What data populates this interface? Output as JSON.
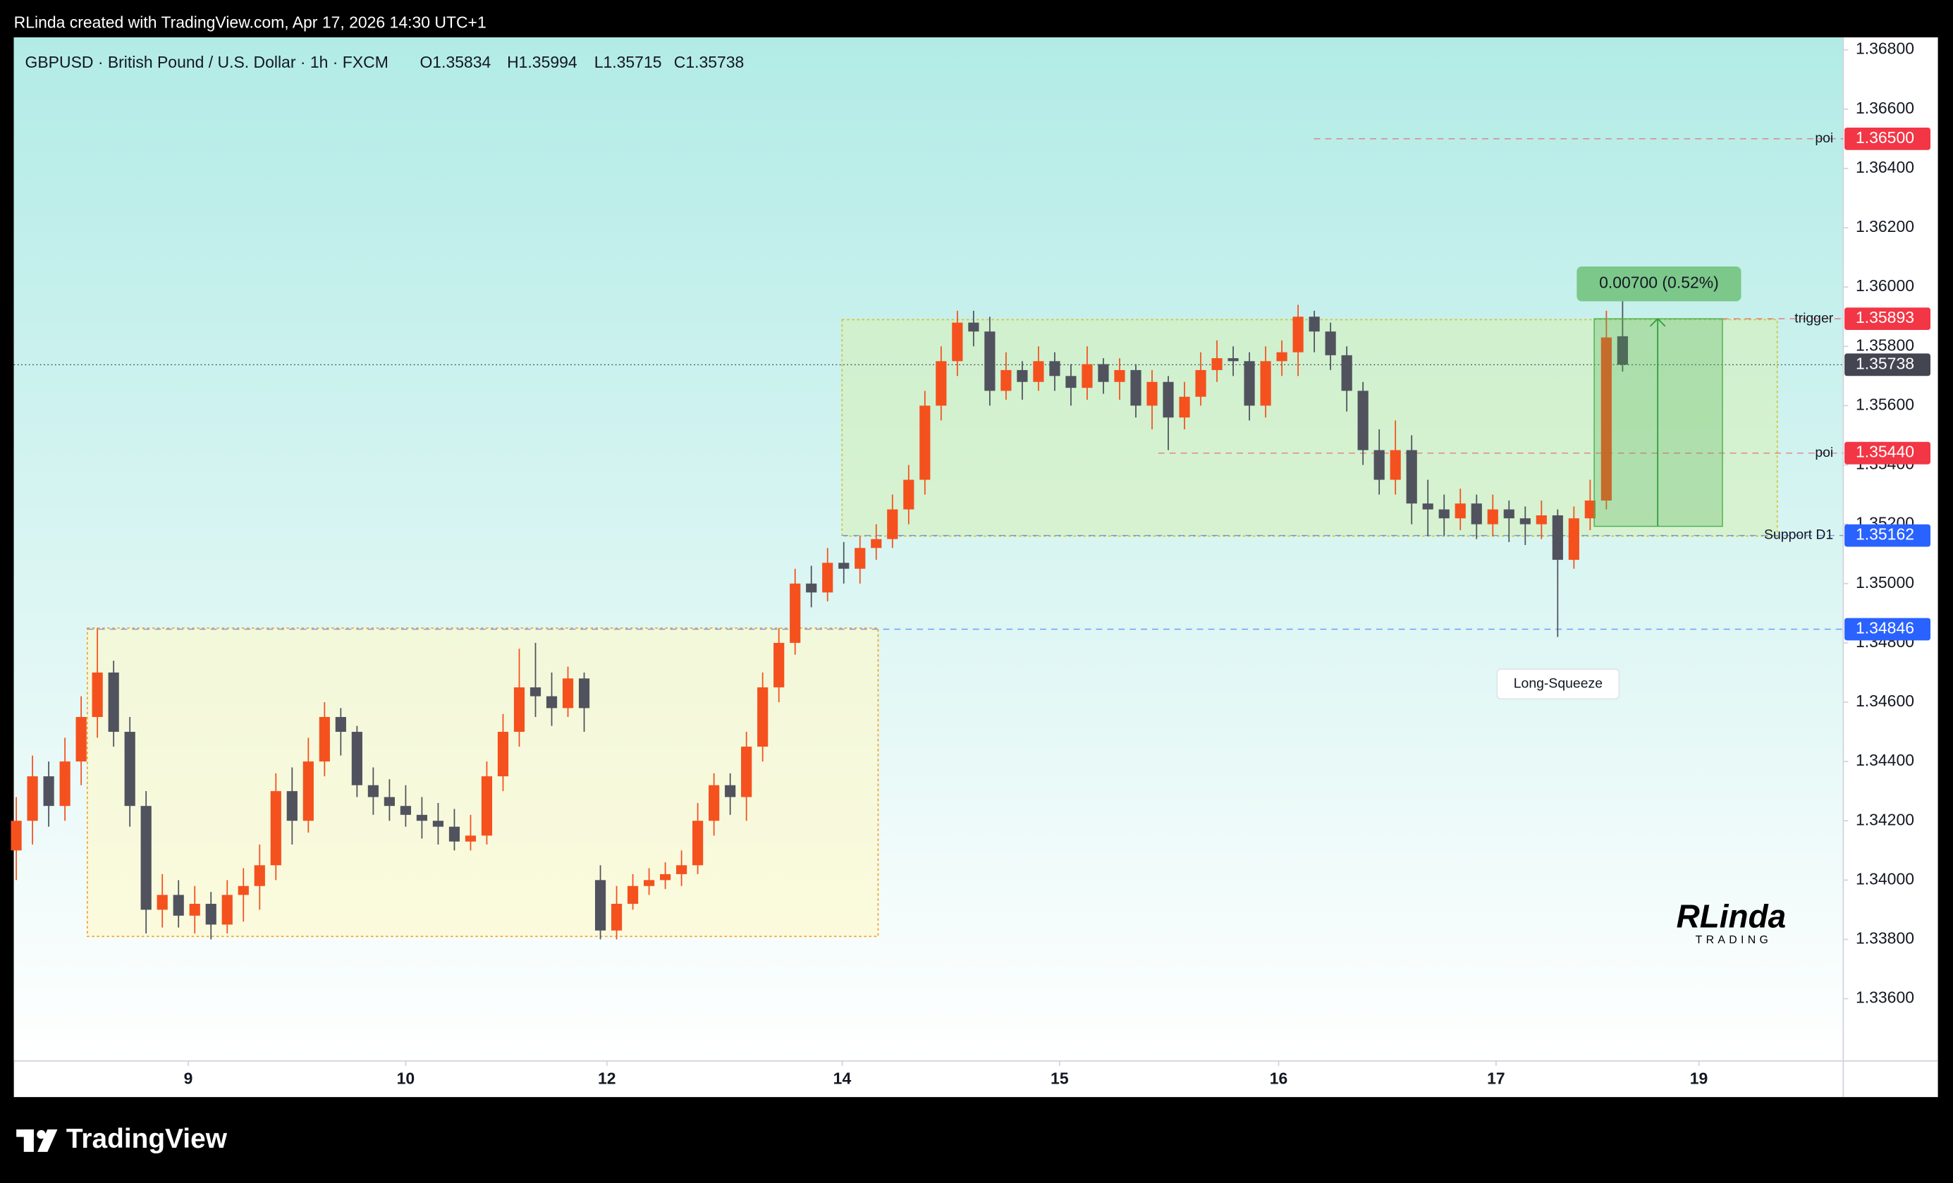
{
  "chart_data": {
    "type": "candlestick",
    "header": "RLinda created with TradingView.com, Apr 17, 2026 14:30 UTC+1",
    "legend_title": "GBPUSD · British Pound / U.S. Dollar · 1h · FXCM",
    "ohlc_labels": [
      "O1.35834",
      "H1.35994",
      "L1.35715",
      "C1.35738"
    ],
    "up_color": "#f4511e",
    "down_color": "#50535e",
    "ohlc": [
      [
        1.341,
        1.3428,
        1.34,
        1.342
      ],
      [
        1.342,
        1.3442,
        1.3412,
        1.3435
      ],
      [
        1.3435,
        1.344,
        1.3418,
        1.3425
      ],
      [
        1.3425,
        1.3448,
        1.342,
        1.344
      ],
      [
        1.344,
        1.3462,
        1.3432,
        1.3455
      ],
      [
        1.3455,
        1.3485,
        1.3448,
        1.347
      ],
      [
        1.347,
        1.3474,
        1.3445,
        1.345
      ],
      [
        1.345,
        1.3455,
        1.3418,
        1.3425
      ],
      [
        1.3425,
        1.343,
        1.3382,
        1.339
      ],
      [
        1.339,
        1.3402,
        1.3384,
        1.3395
      ],
      [
        1.3395,
        1.34,
        1.3384,
        1.3388
      ],
      [
        1.3388,
        1.3398,
        1.3382,
        1.3392
      ],
      [
        1.3392,
        1.3396,
        1.338,
        1.3385
      ],
      [
        1.3385,
        1.34,
        1.3382,
        1.3395
      ],
      [
        1.3395,
        1.3404,
        1.3386,
        1.3398
      ],
      [
        1.3398,
        1.3412,
        1.339,
        1.3405
      ],
      [
        1.3405,
        1.3436,
        1.34,
        1.343
      ],
      [
        1.343,
        1.3438,
        1.3412,
        1.342
      ],
      [
        1.342,
        1.3448,
        1.3416,
        1.344
      ],
      [
        1.344,
        1.346,
        1.3435,
        1.3455
      ],
      [
        1.3455,
        1.3458,
        1.3442,
        1.345
      ],
      [
        1.345,
        1.3452,
        1.3428,
        1.3432
      ],
      [
        1.3432,
        1.3438,
        1.3422,
        1.3428
      ],
      [
        1.3428,
        1.3434,
        1.342,
        1.3425
      ],
      [
        1.3425,
        1.3432,
        1.3418,
        1.3422
      ],
      [
        1.3422,
        1.3428,
        1.3414,
        1.342
      ],
      [
        1.342,
        1.3426,
        1.3412,
        1.3418
      ],
      [
        1.3418,
        1.3424,
        1.341,
        1.3413
      ],
      [
        1.3413,
        1.3422,
        1.341,
        1.3415
      ],
      [
        1.3415,
        1.344,
        1.3412,
        1.3435
      ],
      [
        1.3435,
        1.3456,
        1.343,
        1.345
      ],
      [
        1.345,
        1.3478,
        1.3445,
        1.3465
      ],
      [
        1.3465,
        1.348,
        1.3455,
        1.3462
      ],
      [
        1.3462,
        1.347,
        1.3452,
        1.3458
      ],
      [
        1.3458,
        1.3472,
        1.3455,
        1.3468
      ],
      [
        1.3468,
        1.347,
        1.345,
        1.3458
      ],
      [
        1.34,
        1.3405,
        1.338,
        1.3383
      ],
      [
        1.3383,
        1.3398,
        1.338,
        1.3392
      ],
      [
        1.3392,
        1.3402,
        1.339,
        1.3398
      ],
      [
        1.3398,
        1.3404,
        1.3395,
        1.34
      ],
      [
        1.34,
        1.3406,
        1.3397,
        1.3402
      ],
      [
        1.3402,
        1.341,
        1.3398,
        1.3405
      ],
      [
        1.3405,
        1.3426,
        1.3402,
        1.342
      ],
      [
        1.342,
        1.3436,
        1.3415,
        1.3432
      ],
      [
        1.3432,
        1.3436,
        1.3422,
        1.3428
      ],
      [
        1.3428,
        1.345,
        1.342,
        1.3445
      ],
      [
        1.3445,
        1.347,
        1.344,
        1.3465
      ],
      [
        1.3465,
        1.3485,
        1.346,
        1.348
      ],
      [
        1.348,
        1.3505,
        1.3476,
        1.35
      ],
      [
        1.35,
        1.3506,
        1.3492,
        1.3497
      ],
      [
        1.3497,
        1.3512,
        1.3494,
        1.3507
      ],
      [
        1.3507,
        1.3514,
        1.35,
        1.3505
      ],
      [
        1.3505,
        1.3516,
        1.35,
        1.3512
      ],
      [
        1.3512,
        1.352,
        1.3508,
        1.3515
      ],
      [
        1.3515,
        1.353,
        1.3512,
        1.3525
      ],
      [
        1.3525,
        1.354,
        1.352,
        1.3535
      ],
      [
        1.3535,
        1.3565,
        1.353,
        1.356
      ],
      [
        1.356,
        1.358,
        1.3555,
        1.3575
      ],
      [
        1.3575,
        1.3592,
        1.357,
        1.3588
      ],
      [
        1.3588,
        1.3592,
        1.358,
        1.3585
      ],
      [
        1.3585,
        1.359,
        1.356,
        1.3565
      ],
      [
        1.3565,
        1.3578,
        1.3562,
        1.3572
      ],
      [
        1.3572,
        1.3575,
        1.3562,
        1.3568
      ],
      [
        1.3568,
        1.358,
        1.3565,
        1.3575
      ],
      [
        1.3575,
        1.3578,
        1.3565,
        1.357
      ],
      [
        1.357,
        1.3574,
        1.356,
        1.3566
      ],
      [
        1.3566,
        1.358,
        1.3562,
        1.3574
      ],
      [
        1.3574,
        1.3576,
        1.3564,
        1.3568
      ],
      [
        1.3568,
        1.3576,
        1.3562,
        1.3572
      ],
      [
        1.3572,
        1.3574,
        1.3556,
        1.356
      ],
      [
        1.356,
        1.3572,
        1.3552,
        1.3568
      ],
      [
        1.3568,
        1.357,
        1.3545,
        1.3556
      ],
      [
        1.3556,
        1.3568,
        1.3552,
        1.3563
      ],
      [
        1.3563,
        1.3578,
        1.356,
        1.3572
      ],
      [
        1.3572,
        1.3582,
        1.3568,
        1.3576
      ],
      [
        1.3576,
        1.358,
        1.357,
        1.3575
      ],
      [
        1.3575,
        1.3578,
        1.3555,
        1.356
      ],
      [
        1.356,
        1.358,
        1.3556,
        1.3575
      ],
      [
        1.3575,
        1.3582,
        1.357,
        1.3578
      ],
      [
        1.3578,
        1.3594,
        1.357,
        1.359
      ],
      [
        1.359,
        1.3592,
        1.3578,
        1.3585
      ],
      [
        1.3585,
        1.3588,
        1.3572,
        1.3577
      ],
      [
        1.3577,
        1.358,
        1.3558,
        1.3565
      ],
      [
        1.3565,
        1.3568,
        1.354,
        1.3545
      ],
      [
        1.3545,
        1.3552,
        1.353,
        1.3535
      ],
      [
        1.3535,
        1.3555,
        1.353,
        1.3545
      ],
      [
        1.3545,
        1.355,
        1.352,
        1.3527
      ],
      [
        1.3527,
        1.3535,
        1.3516,
        1.3525
      ],
      [
        1.3525,
        1.353,
        1.3516,
        1.3522
      ],
      [
        1.3522,
        1.3532,
        1.3518,
        1.3527
      ],
      [
        1.3527,
        1.353,
        1.3515,
        1.352
      ],
      [
        1.352,
        1.353,
        1.3516,
        1.3525
      ],
      [
        1.3525,
        1.3528,
        1.3514,
        1.3522
      ],
      [
        1.3522,
        1.3526,
        1.3513,
        1.352
      ],
      [
        1.352,
        1.3528,
        1.3515,
        1.3523
      ],
      [
        1.3523,
        1.3525,
        1.3482,
        1.3508
      ],
      [
        1.3508,
        1.3526,
        1.3505,
        1.3522
      ],
      [
        1.3522,
        1.3535,
        1.3518,
        1.3528
      ],
      [
        1.3528,
        1.3592,
        1.3525,
        1.3583
      ],
      [
        1.35834,
        1.35994,
        1.35715,
        1.35738
      ]
    ],
    "xlim": [
      -0.15,
      112.6
    ],
    "xticks": [
      {
        "value": 10.6,
        "label": "9"
      },
      {
        "value": 24.0,
        "label": "10"
      },
      {
        "value": 36.4,
        "label": "12"
      },
      {
        "value": 50.9,
        "label": "14"
      },
      {
        "value": 64.3,
        "label": "15"
      },
      {
        "value": 77.8,
        "label": "16"
      },
      {
        "value": 91.2,
        "label": "17"
      },
      {
        "value": 103.7,
        "label": "19"
      }
    ],
    "ylim": [
      1.3339,
      1.36842
    ],
    "yticks": [
      {
        "value": 1.368,
        "label": "1.36800"
      },
      {
        "value": 1.366,
        "label": "1.36600"
      },
      {
        "value": 1.364,
        "label": "1.36400"
      },
      {
        "value": 1.362,
        "label": "1.36200"
      },
      {
        "value": 1.36,
        "label": "1.36000"
      },
      {
        "value": 1.358,
        "label": "1.35800"
      },
      {
        "value": 1.356,
        "label": "1.35600"
      },
      {
        "value": 1.354,
        "label": "1.35400"
      },
      {
        "value": 1.352,
        "label": "1.35200"
      },
      {
        "value": 1.35,
        "label": "1.35000"
      },
      {
        "value": 1.348,
        "label": "1.34800"
      },
      {
        "value": 1.346,
        "label": "1.34600"
      },
      {
        "value": 1.344,
        "label": "1.34400"
      },
      {
        "value": 1.342,
        "label": "1.34200"
      },
      {
        "value": 1.34,
        "label": "1.34000"
      },
      {
        "value": 1.338,
        "label": "1.33800"
      },
      {
        "value": 1.336,
        "label": "1.33600"
      }
    ],
    "levels": [
      {
        "value": 1.365,
        "label": "1.36500",
        "text": "poi",
        "color": "#f23645"
      },
      {
        "value": 1.35893,
        "label": "1.35893",
        "text": "trigger",
        "color": "#f23645"
      },
      {
        "value": 1.35738,
        "label": "1.35738",
        "color": "#434651"
      },
      {
        "value": 1.3544,
        "label": "1.35440",
        "text": "poi",
        "color": "#f23645"
      },
      {
        "value": 1.35162,
        "label": "1.35162",
        "text": "Support D1",
        "color": "#2962ff"
      },
      {
        "value": 1.34846,
        "label": "1.34846",
        "color": "#2962ff"
      }
    ],
    "zones": [
      {
        "top": 1.3485,
        "bottom": 1.3381
      },
      {
        "top": 1.3589,
        "bottom": 1.3516
      }
    ],
    "measure": {
      "top": 1.35893,
      "bottom": 1.35193,
      "label": "0.00700 (0.52%)"
    },
    "callout": {
      "value": 1.3472,
      "text": "Long-Squeeze"
    },
    "watermark": "RLinda",
    "watermark_sub": "TRADING",
    "footer_logo": "TradingView"
  }
}
